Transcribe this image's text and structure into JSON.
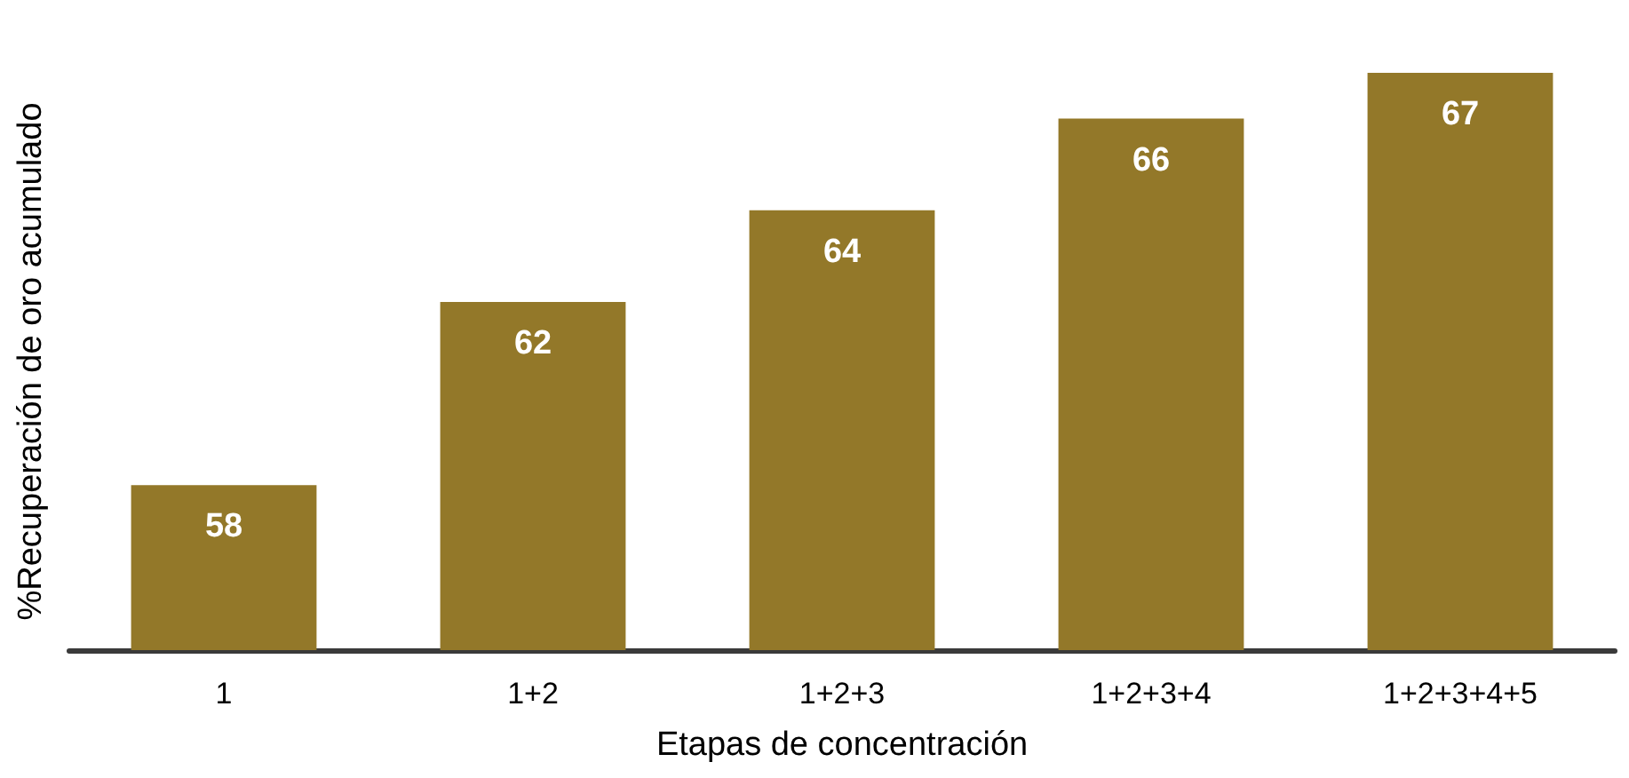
{
  "chart_data": {
    "type": "bar",
    "xlabel": "Etapas de concentración",
    "ylabel": "%Recuperación de oro acumulado",
    "categories": [
      "1",
      "1+2",
      "1+2+3",
      "1+2+3+4",
      "1+2+3+4+5"
    ],
    "values": [
      58,
      62,
      64,
      66,
      67
    ],
    "color": "#937829",
    "ylim": [
      54.4,
      67
    ],
    "data_labels": true
  }
}
